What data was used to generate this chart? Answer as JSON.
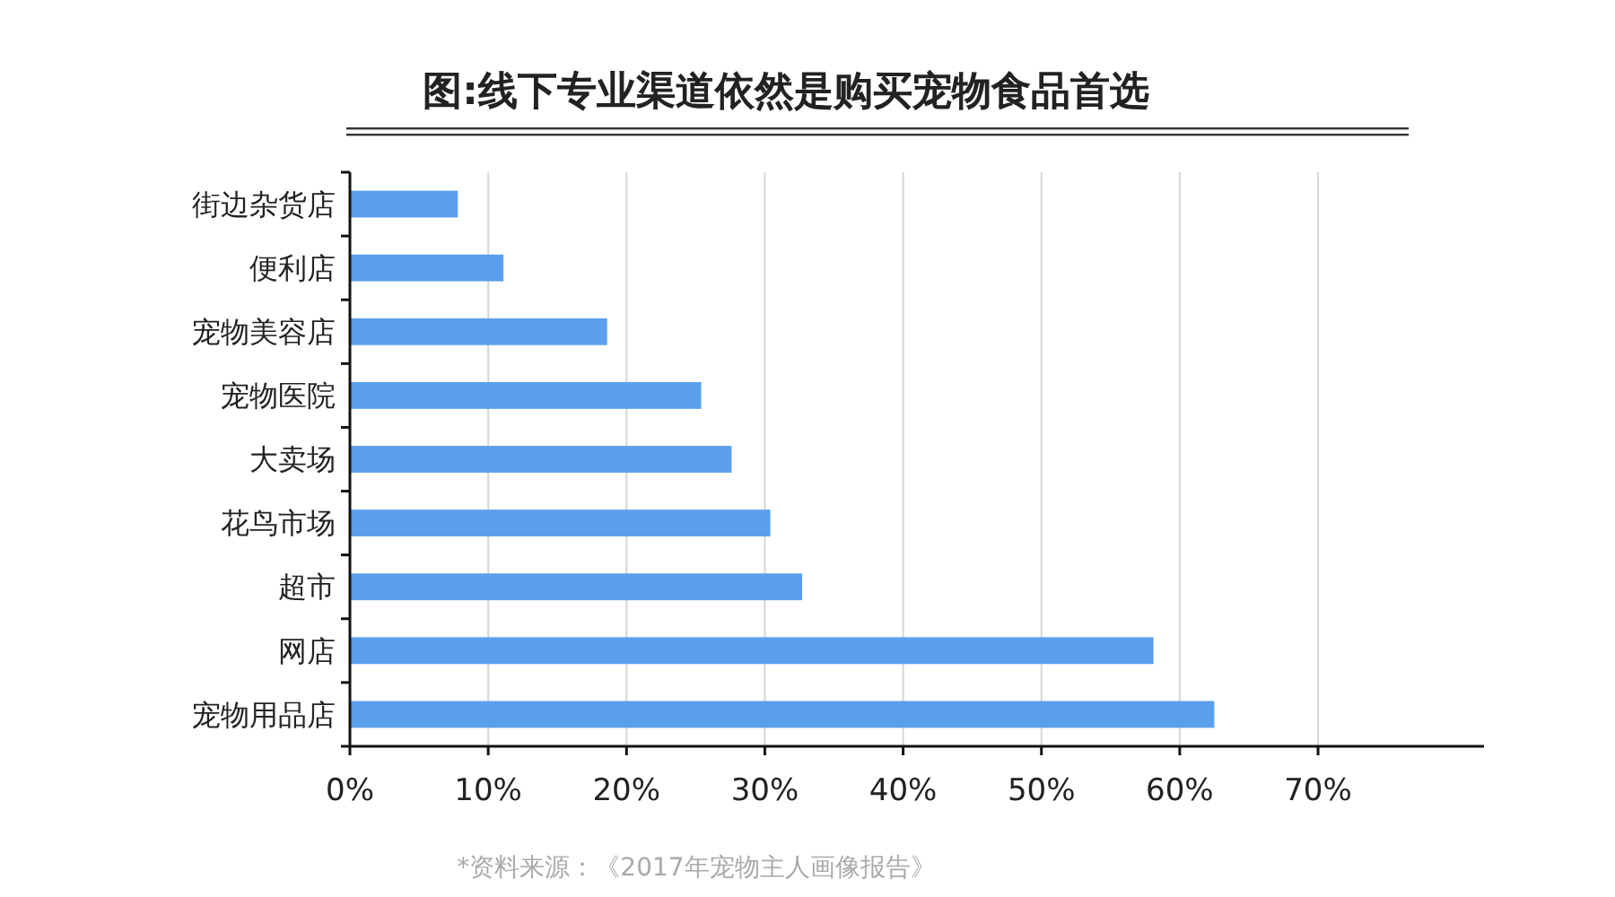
{
  "chart_data": {
    "type": "bar",
    "orientation": "horizontal",
    "title": "图:线下专业渠道依然是购买宠物食品首选",
    "categories": [
      "街边杂货店",
      "便利店",
      "宠物美容店",
      "宠物医院",
      "大卖场",
      "花鸟市场",
      "超市",
      "网店",
      "宠物用品店"
    ],
    "values": [
      7.8,
      11.1,
      18.6,
      25.4,
      27.6,
      30.4,
      32.7,
      58.1,
      62.5
    ],
    "color": "#5b9fec",
    "xlim": [
      0,
      82
    ],
    "xticks": [
      {
        "value": 0,
        "label": "0%"
      },
      {
        "value": 10,
        "label": "10%"
      },
      {
        "value": 20,
        "label": "20%"
      },
      {
        "value": 30,
        "label": "30%"
      },
      {
        "value": 40,
        "label": "40%"
      },
      {
        "value": 50,
        "label": "50%"
      },
      {
        "value": 60,
        "label": "60%"
      },
      {
        "value": 70,
        "label": "70%"
      }
    ],
    "grid": "x",
    "annotations": [
      "*资料来源：《2017年宠物主人画像报告》"
    ]
  }
}
